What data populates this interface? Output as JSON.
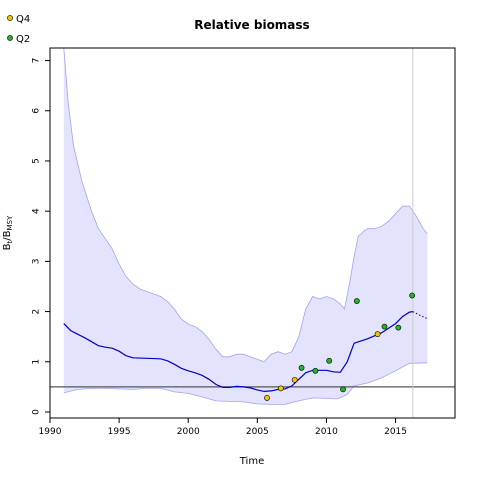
{
  "chart_data": {
    "type": "line",
    "title": "Relative biomass",
    "xlabel": "Time",
    "ylabel_main": "B",
    "ylabel_sub1": "t",
    "ylabel_sep": "/B",
    "ylabel_sub2": "MSY",
    "xlim": [
      1990,
      2019.3
    ],
    "ylim": [
      -0.12,
      7.25
    ],
    "x_ticks": [
      1990,
      1995,
      2000,
      2005,
      2010,
      2015
    ],
    "y_ticks": [
      0,
      1,
      2,
      3,
      4,
      5,
      6,
      7
    ],
    "reference_line_y": 0.5,
    "vertical_line_x": 2016.25,
    "grid": false,
    "legend_position": "top-left",
    "legend": [
      {
        "label": "Q4",
        "color": "#f5c400"
      },
      {
        "label": "Q2",
        "color": "#22b522"
      }
    ],
    "colors": {
      "band_fill": "#e3e3fd",
      "band_edge": "#a3a3f0",
      "median_line": "#0000cd",
      "reference_line": "#555555",
      "vertical_line": "#cccccc"
    },
    "band_upper": [
      [
        1991.0,
        7.25
      ],
      [
        1991.3,
        6.2
      ],
      [
        1991.7,
        5.3
      ],
      [
        1992.3,
        4.6
      ],
      [
        1993.0,
        4.0
      ],
      [
        1993.5,
        3.65
      ],
      [
        1994.0,
        3.45
      ],
      [
        1994.5,
        3.25
      ],
      [
        1995.0,
        2.95
      ],
      [
        1995.5,
        2.7
      ],
      [
        1996.0,
        2.55
      ],
      [
        1996.5,
        2.45
      ],
      [
        1997.0,
        2.4
      ],
      [
        1997.5,
        2.35
      ],
      [
        1998.0,
        2.3
      ],
      [
        1998.5,
        2.2
      ],
      [
        1999.0,
        2.05
      ],
      [
        1999.5,
        1.85
      ],
      [
        2000.0,
        1.75
      ],
      [
        2000.5,
        1.7
      ],
      [
        2001.0,
        1.6
      ],
      [
        2001.5,
        1.45
      ],
      [
        2002.0,
        1.25
      ],
      [
        2002.5,
        1.1
      ],
      [
        2003.0,
        1.1
      ],
      [
        2003.5,
        1.15
      ],
      [
        2004.0,
        1.15
      ],
      [
        2004.5,
        1.1
      ],
      [
        2005.0,
        1.05
      ],
      [
        2005.5,
        1.0
      ],
      [
        2006.0,
        1.15
      ],
      [
        2006.5,
        1.2
      ],
      [
        2007.0,
        1.15
      ],
      [
        2007.5,
        1.2
      ],
      [
        2008.0,
        1.5
      ],
      [
        2008.5,
        2.05
      ],
      [
        2009.0,
        2.3
      ],
      [
        2009.5,
        2.25
      ],
      [
        2010.0,
        2.3
      ],
      [
        2010.5,
        2.25
      ],
      [
        2011.0,
        2.15
      ],
      [
        2011.3,
        2.05
      ],
      [
        2011.7,
        2.6
      ],
      [
        2012.0,
        3.1
      ],
      [
        2012.3,
        3.5
      ],
      [
        2012.7,
        3.6
      ],
      [
        2013.0,
        3.65
      ],
      [
        2013.5,
        3.65
      ],
      [
        2014.0,
        3.7
      ],
      [
        2014.5,
        3.8
      ],
      [
        2015.0,
        3.95
      ],
      [
        2015.5,
        4.1
      ],
      [
        2016.0,
        4.1
      ],
      [
        2016.5,
        3.9
      ],
      [
        2017.0,
        3.65
      ],
      [
        2017.3,
        3.55
      ]
    ],
    "band_lower": [
      [
        1991.0,
        0.38
      ],
      [
        1992.0,
        0.45
      ],
      [
        1993.0,
        0.47
      ],
      [
        1994.0,
        0.47
      ],
      [
        1995.0,
        0.46
      ],
      [
        1996.0,
        0.45
      ],
      [
        1997.0,
        0.47
      ],
      [
        1998.0,
        0.47
      ],
      [
        1999.0,
        0.4
      ],
      [
        2000.0,
        0.37
      ],
      [
        2001.0,
        0.3
      ],
      [
        2002.0,
        0.22
      ],
      [
        2003.0,
        0.21
      ],
      [
        2004.0,
        0.2
      ],
      [
        2005.0,
        0.16
      ],
      [
        2006.0,
        0.15
      ],
      [
        2007.0,
        0.15
      ],
      [
        2008.0,
        0.22
      ],
      [
        2009.0,
        0.28
      ],
      [
        2010.0,
        0.27
      ],
      [
        2010.8,
        0.26
      ],
      [
        2011.5,
        0.35
      ],
      [
        2012.0,
        0.52
      ],
      [
        2013.0,
        0.58
      ],
      [
        2014.0,
        0.68
      ],
      [
        2015.0,
        0.82
      ],
      [
        2016.0,
        0.97
      ],
      [
        2017.3,
        0.98
      ]
    ],
    "median": [
      [
        1991.0,
        1.76
      ],
      [
        1991.5,
        1.62
      ],
      [
        1992.0,
        1.55
      ],
      [
        1992.5,
        1.48
      ],
      [
        1993.0,
        1.4
      ],
      [
        1993.5,
        1.32
      ],
      [
        1994.0,
        1.29
      ],
      [
        1994.5,
        1.27
      ],
      [
        1995.0,
        1.21
      ],
      [
        1995.5,
        1.12
      ],
      [
        1996.0,
        1.08
      ],
      [
        1997.0,
        1.07
      ],
      [
        1998.0,
        1.06
      ],
      [
        1998.5,
        1.02
      ],
      [
        1999.0,
        0.95
      ],
      [
        1999.5,
        0.87
      ],
      [
        2000.0,
        0.82
      ],
      [
        2000.5,
        0.78
      ],
      [
        2001.0,
        0.73
      ],
      [
        2001.5,
        0.65
      ],
      [
        2002.0,
        0.55
      ],
      [
        2002.5,
        0.49
      ],
      [
        2003.0,
        0.49
      ],
      [
        2003.5,
        0.51
      ],
      [
        2004.0,
        0.5
      ],
      [
        2004.5,
        0.48
      ],
      [
        2005.0,
        0.44
      ],
      [
        2005.5,
        0.41
      ],
      [
        2006.0,
        0.42
      ],
      [
        2006.5,
        0.45
      ],
      [
        2007.0,
        0.46
      ],
      [
        2007.5,
        0.52
      ],
      [
        2008.0,
        0.65
      ],
      [
        2008.5,
        0.78
      ],
      [
        2009.0,
        0.83
      ],
      [
        2010.0,
        0.83
      ],
      [
        2010.5,
        0.8
      ],
      [
        2011.0,
        0.79
      ],
      [
        2011.5,
        1.0
      ],
      [
        2012.0,
        1.37
      ],
      [
        2013.0,
        1.46
      ],
      [
        2014.0,
        1.58
      ],
      [
        2015.0,
        1.76
      ],
      [
        2015.5,
        1.9
      ],
      [
        2016.0,
        1.99
      ],
      [
        2016.25,
        2.0
      ]
    ],
    "projection": [
      [
        2016.25,
        2.0
      ],
      [
        2016.8,
        1.92
      ],
      [
        2017.3,
        1.86
      ]
    ],
    "points_Q4": [
      [
        2005.7,
        0.28
      ],
      [
        2006.7,
        0.47
      ],
      [
        2007.7,
        0.64
      ],
      [
        2013.7,
        1.55
      ]
    ],
    "points_Q2": [
      [
        2008.2,
        0.88
      ],
      [
        2009.2,
        0.82
      ],
      [
        2010.2,
        1.02
      ],
      [
        2011.2,
        0.45
      ],
      [
        2012.2,
        2.21
      ],
      [
        2014.2,
        1.7
      ],
      [
        2015.2,
        1.68
      ],
      [
        2016.2,
        2.32
      ]
    ]
  }
}
